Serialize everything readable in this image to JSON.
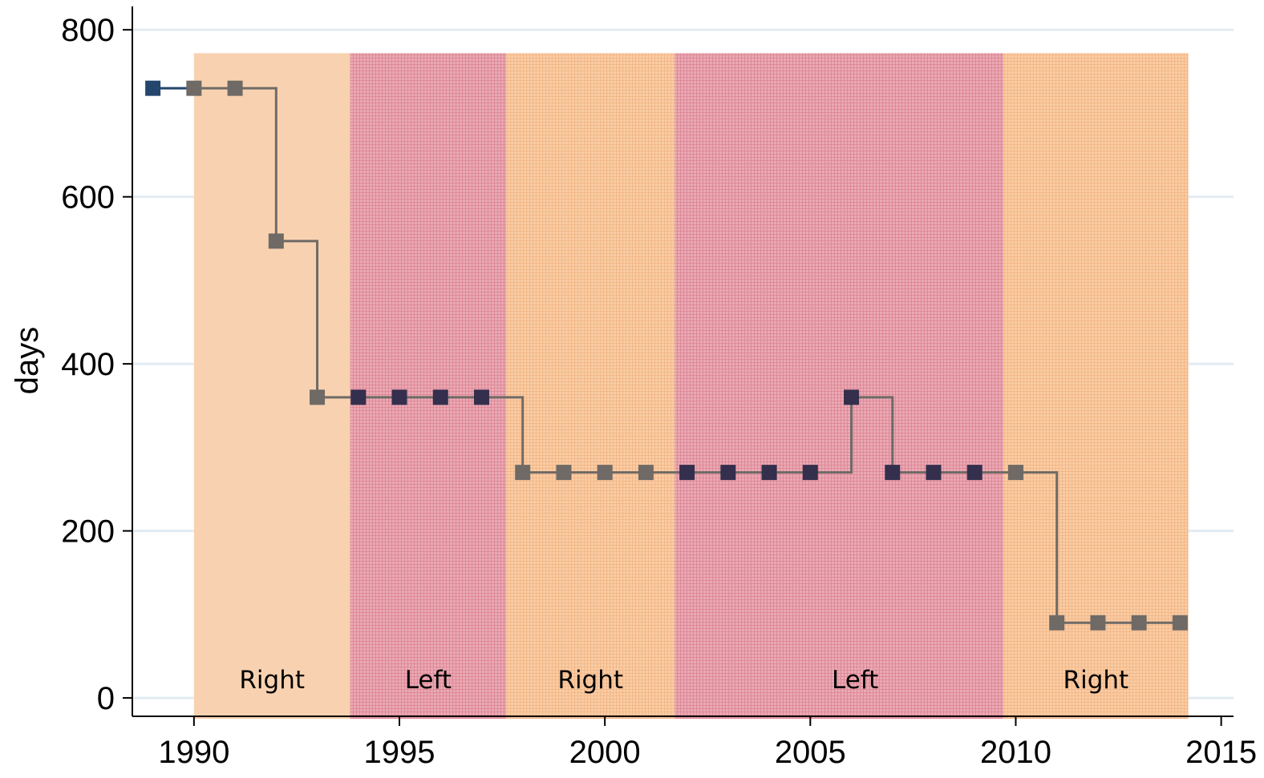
{
  "chart_data": {
    "type": "line",
    "ylabel": "days",
    "xlim": [
      1988.5,
      2015.3
    ],
    "ylim": [
      -22,
      828
    ],
    "x_ticks": [
      1990,
      1995,
      2000,
      2005,
      2010,
      2015
    ],
    "y_ticks": [
      0,
      200,
      400,
      600,
      800
    ],
    "grid": "horizontal",
    "step": "post",
    "periods": [
      {
        "label": "Right",
        "start": 1990.0,
        "end": 1993.8,
        "color": "#f8d2b0",
        "pattern": "solid"
      },
      {
        "label": "Left",
        "start": 1993.8,
        "end": 1997.6,
        "color": "#e49aa8",
        "pattern": "crosshatch"
      },
      {
        "label": "Right",
        "start": 1997.6,
        "end": 2001.7,
        "color": "#f7c69a",
        "pattern": "crosshatch"
      },
      {
        "label": "Left",
        "start": 2001.7,
        "end": 2009.7,
        "color": "#e49aa8",
        "pattern": "crosshatch"
      },
      {
        "label": "Right",
        "start": 2009.7,
        "end": 2014.2,
        "color": "#f7c69a",
        "pattern": "crosshatch"
      }
    ],
    "series": [
      {
        "x": [
          1989,
          1990,
          1991,
          1992,
          1993,
          1994,
          1995,
          1996,
          1997,
          1998,
          1999,
          2000,
          2001,
          2002,
          2003,
          2004,
          2005,
          2006,
          2007,
          2008,
          2009,
          2010,
          2011,
          2012,
          2013,
          2014
        ],
        "values": [
          730,
          730,
          730,
          547,
          360,
          360,
          360,
          360,
          360,
          270,
          270,
          270,
          270,
          270,
          270,
          270,
          270,
          360,
          270,
          270,
          270,
          270,
          90,
          90,
          90,
          90
        ]
      }
    ],
    "colors": {
      "line": "#6f6a66",
      "marker_left": "#342f4d",
      "marker_right": "#6f6a66",
      "first_marker": "#24466d",
      "grid": "#e3ebf2"
    }
  }
}
